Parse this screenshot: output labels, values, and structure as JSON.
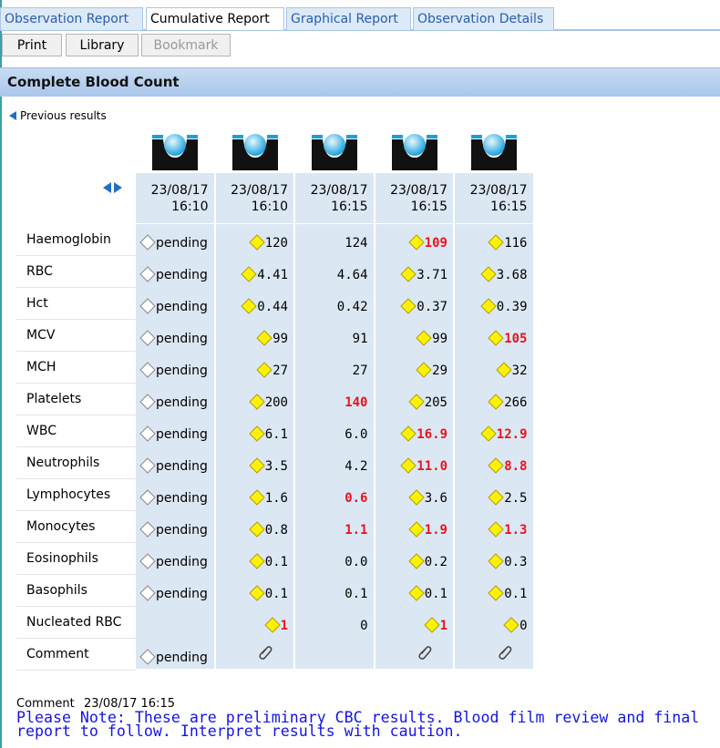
{
  "tabs": [
    {
      "label": "Observation Report"
    },
    {
      "label": "Cumulative Report",
      "active": true
    },
    {
      "label": "Graphical Report"
    },
    {
      "label": "Observation Details"
    }
  ],
  "toolbar": [
    {
      "label": "Print"
    },
    {
      "label": "Library"
    },
    {
      "label": "Bookmark",
      "disabled": true
    }
  ],
  "section_title": "Complete Blood Count",
  "previous_results": "Previous results",
  "columns": [
    {
      "date": "23/08/17",
      "time": "16:10"
    },
    {
      "date": "23/08/17",
      "time": "16:10"
    },
    {
      "date": "23/08/17",
      "time": "16:15"
    },
    {
      "date": "23/08/17",
      "time": "16:15"
    },
    {
      "date": "23/08/17",
      "time": "16:15"
    }
  ],
  "rows": [
    {
      "label": "Haemoglobin",
      "cells": [
        {
          "value": "pending",
          "marker": "white"
        },
        {
          "value": "120",
          "marker": "yellow"
        },
        {
          "value": "124",
          "marker": "none"
        },
        {
          "value": "109",
          "marker": "yellow",
          "abnormal": true
        },
        {
          "value": "116",
          "marker": "yellow"
        }
      ]
    },
    {
      "label": "RBC",
      "cells": [
        {
          "value": "pending",
          "marker": "white"
        },
        {
          "value": "4.41",
          "marker": "yellow"
        },
        {
          "value": "4.64",
          "marker": "none"
        },
        {
          "value": "3.71",
          "marker": "yellow"
        },
        {
          "value": "3.68",
          "marker": "yellow"
        }
      ]
    },
    {
      "label": "Hct",
      "cells": [
        {
          "value": "pending",
          "marker": "white"
        },
        {
          "value": "0.44",
          "marker": "yellow"
        },
        {
          "value": "0.42",
          "marker": "none"
        },
        {
          "value": "0.37",
          "marker": "yellow"
        },
        {
          "value": "0.39",
          "marker": "yellow"
        }
      ]
    },
    {
      "label": "MCV",
      "cells": [
        {
          "value": "pending",
          "marker": "white"
        },
        {
          "value": "99",
          "marker": "yellow"
        },
        {
          "value": "91",
          "marker": "none"
        },
        {
          "value": "99",
          "marker": "yellow"
        },
        {
          "value": "105",
          "marker": "yellow",
          "abnormal": true
        }
      ]
    },
    {
      "label": "MCH",
      "cells": [
        {
          "value": "pending",
          "marker": "white"
        },
        {
          "value": "27",
          "marker": "yellow"
        },
        {
          "value": "27",
          "marker": "none"
        },
        {
          "value": "29",
          "marker": "yellow"
        },
        {
          "value": "32",
          "marker": "yellow"
        }
      ]
    },
    {
      "label": "Platelets",
      "cells": [
        {
          "value": "pending",
          "marker": "white"
        },
        {
          "value": "200",
          "marker": "yellow"
        },
        {
          "value": "140",
          "marker": "none",
          "abnormal": true
        },
        {
          "value": "205",
          "marker": "yellow"
        },
        {
          "value": "266",
          "marker": "yellow"
        }
      ]
    },
    {
      "label": "WBC",
      "cells": [
        {
          "value": "pending",
          "marker": "white"
        },
        {
          "value": "6.1",
          "marker": "yellow"
        },
        {
          "value": "6.0",
          "marker": "none"
        },
        {
          "value": "16.9",
          "marker": "yellow",
          "abnormal": true
        },
        {
          "value": "12.9",
          "marker": "yellow",
          "abnormal": true
        }
      ]
    },
    {
      "label": "Neutrophils",
      "cells": [
        {
          "value": "pending",
          "marker": "white"
        },
        {
          "value": "3.5",
          "marker": "yellow"
        },
        {
          "value": "4.2",
          "marker": "none"
        },
        {
          "value": "11.0",
          "marker": "yellow",
          "abnormal": true
        },
        {
          "value": "8.8",
          "marker": "yellow",
          "abnormal": true
        }
      ]
    },
    {
      "label": "Lymphocytes",
      "cells": [
        {
          "value": "pending",
          "marker": "white"
        },
        {
          "value": "1.6",
          "marker": "yellow"
        },
        {
          "value": "0.6",
          "marker": "none",
          "abnormal": true
        },
        {
          "value": "3.6",
          "marker": "yellow"
        },
        {
          "value": "2.5",
          "marker": "yellow"
        }
      ]
    },
    {
      "label": "Monocytes",
      "cells": [
        {
          "value": "pending",
          "marker": "white"
        },
        {
          "value": "0.8",
          "marker": "yellow"
        },
        {
          "value": "1.1",
          "marker": "none",
          "abnormal": true
        },
        {
          "value": "1.9",
          "marker": "yellow",
          "abnormal": true
        },
        {
          "value": "1.3",
          "marker": "yellow",
          "abnormal": true
        }
      ]
    },
    {
      "label": "Eosinophils",
      "cells": [
        {
          "value": "pending",
          "marker": "white"
        },
        {
          "value": "0.1",
          "marker": "yellow"
        },
        {
          "value": "0.0",
          "marker": "none"
        },
        {
          "value": "0.2",
          "marker": "yellow"
        },
        {
          "value": "0.3",
          "marker": "yellow"
        }
      ]
    },
    {
      "label": "Basophils",
      "cells": [
        {
          "value": "pending",
          "marker": "white"
        },
        {
          "value": "0.1",
          "marker": "yellow"
        },
        {
          "value": "0.1",
          "marker": "none"
        },
        {
          "value": "0.1",
          "marker": "yellow"
        },
        {
          "value": "0.1",
          "marker": "yellow"
        }
      ]
    },
    {
      "label": "Nucleated RBC",
      "cells": [
        null,
        {
          "value": "1",
          "marker": "yellow",
          "abnormal": true
        },
        {
          "value": "0",
          "marker": "none"
        },
        {
          "value": "1",
          "marker": "yellow",
          "abnormal": true
        },
        {
          "value": "0",
          "marker": "yellow"
        }
      ]
    },
    {
      "label": "Comment",
      "cells": [
        {
          "value": "pending",
          "marker": "white"
        },
        {
          "marker": "clip"
        },
        null,
        {
          "marker": "clip"
        },
        {
          "marker": "clip"
        }
      ]
    }
  ],
  "comment": {
    "label": "Comment",
    "timestamp": "23/08/17 16:15",
    "lines": [
      "Please Note: These are preliminary CBC results. Blood film review and final",
      "report to follow. Interpret results with caution."
    ]
  }
}
